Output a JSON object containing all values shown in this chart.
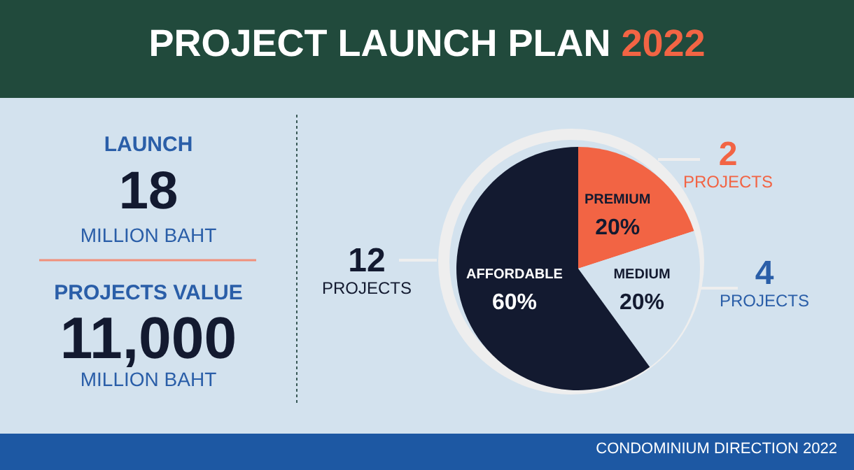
{
  "chart_data": {
    "type": "pie",
    "title": "PROJECT LAUNCH PLAN 2022",
    "categories": [
      "PREMIUM",
      "MEDIUM",
      "AFFORDABLE"
    ],
    "values": [
      20,
      20,
      60
    ],
    "colors": [
      "#f26444",
      "#d3e2ee",
      "#131a30"
    ],
    "value_labels": [
      "20%",
      "20%",
      "60%"
    ],
    "legend": false,
    "annotations": [
      "LAUNCH",
      "18",
      "MILLION BAHT",
      "PROJECTS VALUE",
      "11,000",
      "MILLION BAHT",
      "2 PROJECTS",
      "4 PROJECTS",
      "12 PROJECTS",
      "CONDOMINIUM DIRECTION 2022"
    ]
  }
}
